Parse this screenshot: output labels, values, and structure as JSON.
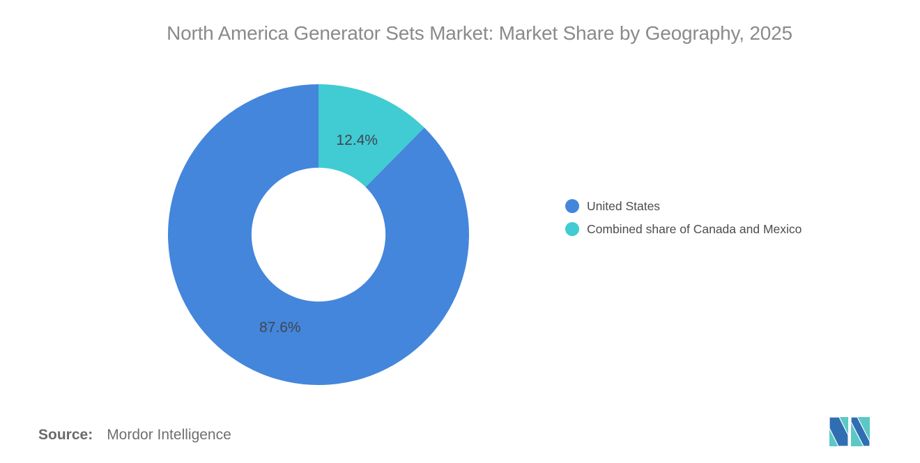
{
  "title": "North America Generator Sets Market: Market Share by Geography, 2025",
  "chart_data": {
    "type": "pie",
    "subtype": "donut",
    "title": "North America Generator Sets Market: Market Share by Geography, 2025",
    "series": [
      {
        "name": "United States",
        "value": 87.6,
        "label": "87.6%",
        "color": "#4486DB"
      },
      {
        "name": "Combined share of Canada and Mexico",
        "value": 12.4,
        "label": "12.4%",
        "color": "#41CBD2"
      }
    ],
    "rotation_deg": 44.64,
    "inner_radius_ratio": 0.445,
    "labels_inside": true,
    "data_label_color": "#3F4650",
    "legend_position": "right",
    "background": "#FFFFFF"
  },
  "source": {
    "label": "Source:",
    "name": "Mordor Intelligence"
  },
  "logo": {
    "teal": "#5CC8C6",
    "blue": "#2F6EB2"
  }
}
